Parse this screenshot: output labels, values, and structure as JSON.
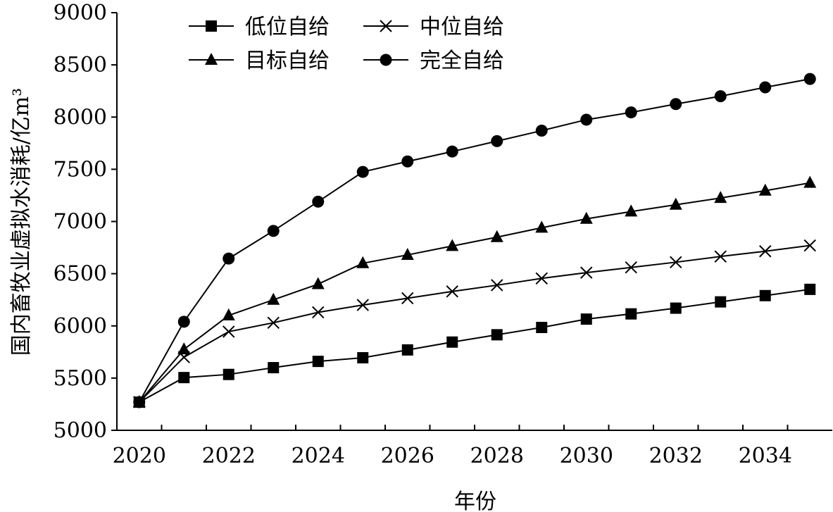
{
  "chart_data": {
    "type": "line",
    "xlabel": "年份",
    "ylabel": "国内畜牧业虚拟水消耗/亿m³",
    "xlim": [
      2020,
      2035
    ],
    "ylim": [
      5000,
      9000
    ],
    "x_ticks": [
      "2020",
      "2022",
      "2024",
      "2026",
      "2028",
      "2030",
      "2032",
      "2034"
    ],
    "y_ticks": [
      "5000",
      "5500",
      "6000",
      "6500",
      "7000",
      "7500",
      "8000",
      "8500",
      "9000"
    ],
    "x": [
      2020,
      2021,
      2022,
      2023,
      2024,
      2025,
      2026,
      2027,
      2028,
      2029,
      2030,
      2031,
      2032,
      2033,
      2034,
      2035
    ],
    "legend_position": "top-left",
    "series": [
      {
        "name": "低位自给",
        "marker": "square",
        "values": [
          5270,
          5505,
          5535,
          5600,
          5660,
          5695,
          5770,
          5845,
          5915,
          5985,
          6065,
          6115,
          6170,
          6230,
          6290,
          6350
        ]
      },
      {
        "name": "中位自给",
        "marker": "x",
        "values": [
          5270,
          5700,
          5945,
          6030,
          6130,
          6200,
          6265,
          6330,
          6390,
          6455,
          6510,
          6560,
          6610,
          6665,
          6715,
          6770
        ]
      },
      {
        "name": "目标自给",
        "marker": "triangle",
        "values": [
          5270,
          5775,
          6100,
          6250,
          6400,
          6600,
          6680,
          6765,
          6850,
          6940,
          7025,
          7095,
          7160,
          7225,
          7295,
          7370
        ]
      },
      {
        "name": "完全自给",
        "marker": "circle",
        "values": [
          5270,
          6040,
          6645,
          6910,
          7190,
          7475,
          7575,
          7670,
          7770,
          7870,
          7975,
          8045,
          8125,
          8200,
          8285,
          8365
        ]
      }
    ]
  }
}
